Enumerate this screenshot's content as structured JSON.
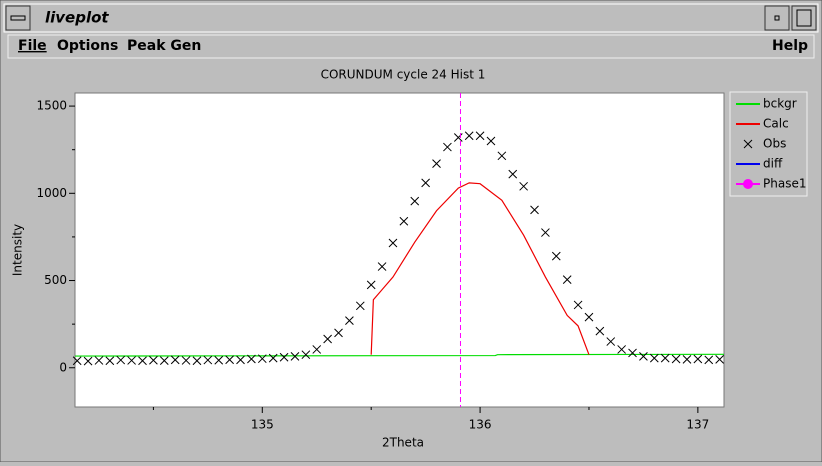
{
  "window": {
    "title": "liveplot",
    "menu": [
      "File",
      "Options",
      "Peak Gen"
    ],
    "help": "Help"
  },
  "chart_data": {
    "type": "line",
    "title": "CORUNDUM cycle 24 Hist 1",
    "x_label": "2Theta",
    "y_label": "Intensity",
    "xlim": [
      134.14,
      137.12
    ],
    "xticks": [
      135,
      136,
      137
    ],
    "xminor_ticks": [
      134.5,
      135.5,
      136.5
    ],
    "ylim": [
      -225,
      1575
    ],
    "yticks": [
      0,
      500,
      1000,
      1500
    ],
    "yminor_ticks": [
      250,
      750,
      1250
    ],
    "legend": "right",
    "series": [
      {
        "name": "bckgr",
        "color": "#00dd00",
        "x": [
          134.14,
          136.07,
          136.08,
          137.12
        ],
        "values": [
          67,
          70,
          75,
          77
        ]
      },
      {
        "name": "Calc",
        "color": "#ee0000",
        "x": [
          135.5,
          135.51,
          135.6,
          135.7,
          135.8,
          135.9,
          135.95,
          136.0,
          136.1,
          136.2,
          136.3,
          136.4,
          136.45,
          136.5
        ],
        "values": [
          75,
          390,
          520,
          720,
          900,
          1030,
          1060,
          1055,
          960,
          760,
          520,
          300,
          240,
          75
        ]
      },
      {
        "name": "Obs",
        "color": "#000000",
        "marker": "x",
        "x": [
          134.15,
          134.2,
          134.25,
          134.3,
          134.35,
          134.4,
          134.45,
          134.5,
          134.55,
          134.6,
          134.65,
          134.7,
          134.75,
          134.8,
          134.85,
          134.9,
          134.95,
          135.0,
          135.05,
          135.1,
          135.15,
          135.2,
          135.25,
          135.3,
          135.35,
          135.4,
          135.45,
          135.5,
          135.55,
          135.6,
          135.65,
          135.7,
          135.75,
          135.8,
          135.85,
          135.9,
          135.95,
          136.0,
          136.05,
          136.1,
          136.15,
          136.2,
          136.25,
          136.3,
          136.35,
          136.4,
          136.45,
          136.5,
          136.55,
          136.6,
          136.65,
          136.7,
          136.75,
          136.8,
          136.85,
          136.9,
          136.95,
          137.0,
          137.05,
          137.1
        ],
        "values": [
          40,
          38,
          42,
          40,
          44,
          42,
          40,
          43,
          41,
          45,
          42,
          40,
          44,
          43,
          46,
          45,
          50,
          52,
          55,
          60,
          65,
          75,
          105,
          165,
          200,
          270,
          355,
          475,
          580,
          715,
          840,
          955,
          1060,
          1170,
          1265,
          1320,
          1330,
          1330,
          1300,
          1215,
          1110,
          1040,
          905,
          775,
          640,
          505,
          360,
          290,
          210,
          150,
          105,
          85,
          65,
          55,
          55,
          50,
          48,
          50,
          45,
          48
        ]
      },
      {
        "name": "diff",
        "color": "#0000ee",
        "x": [],
        "values": []
      },
      {
        "name": "Phase1",
        "color": "#ff00ff",
        "marker": "reflection",
        "positions": [
          135.91
        ]
      }
    ]
  }
}
